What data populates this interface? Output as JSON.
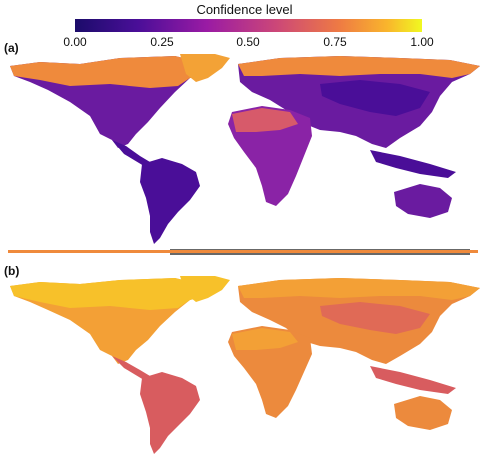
{
  "legend": {
    "title": "Confidence level",
    "ticks": [
      "0.00",
      "0.25",
      "0.50",
      "0.75",
      "1.00"
    ],
    "colors": [
      "#1b0c6a",
      "#5a0ea0",
      "#9a1ba4",
      "#cc4778",
      "#ee7a44",
      "#f9b52c",
      "#f0f921"
    ]
  },
  "panels": [
    {
      "label": "(a)",
      "palette": {
        "main": "#6a1ba0",
        "deep": "#4a0e98",
        "mid": "#8a23a6",
        "warm": "#d75a6a",
        "hot": "#ef8a3c",
        "hi": "#f3a236",
        "antarctic": "#686868"
      }
    },
    {
      "label": "(b)",
      "palette": {
        "main": "#ec8a3d",
        "deep": "#d85c5f",
        "mid": "#e06a56",
        "warm": "#f3a036",
        "hot": "#f5b12e",
        "hi": "#f7c12a",
        "antarctic": "#ffffff"
      }
    }
  ]
}
